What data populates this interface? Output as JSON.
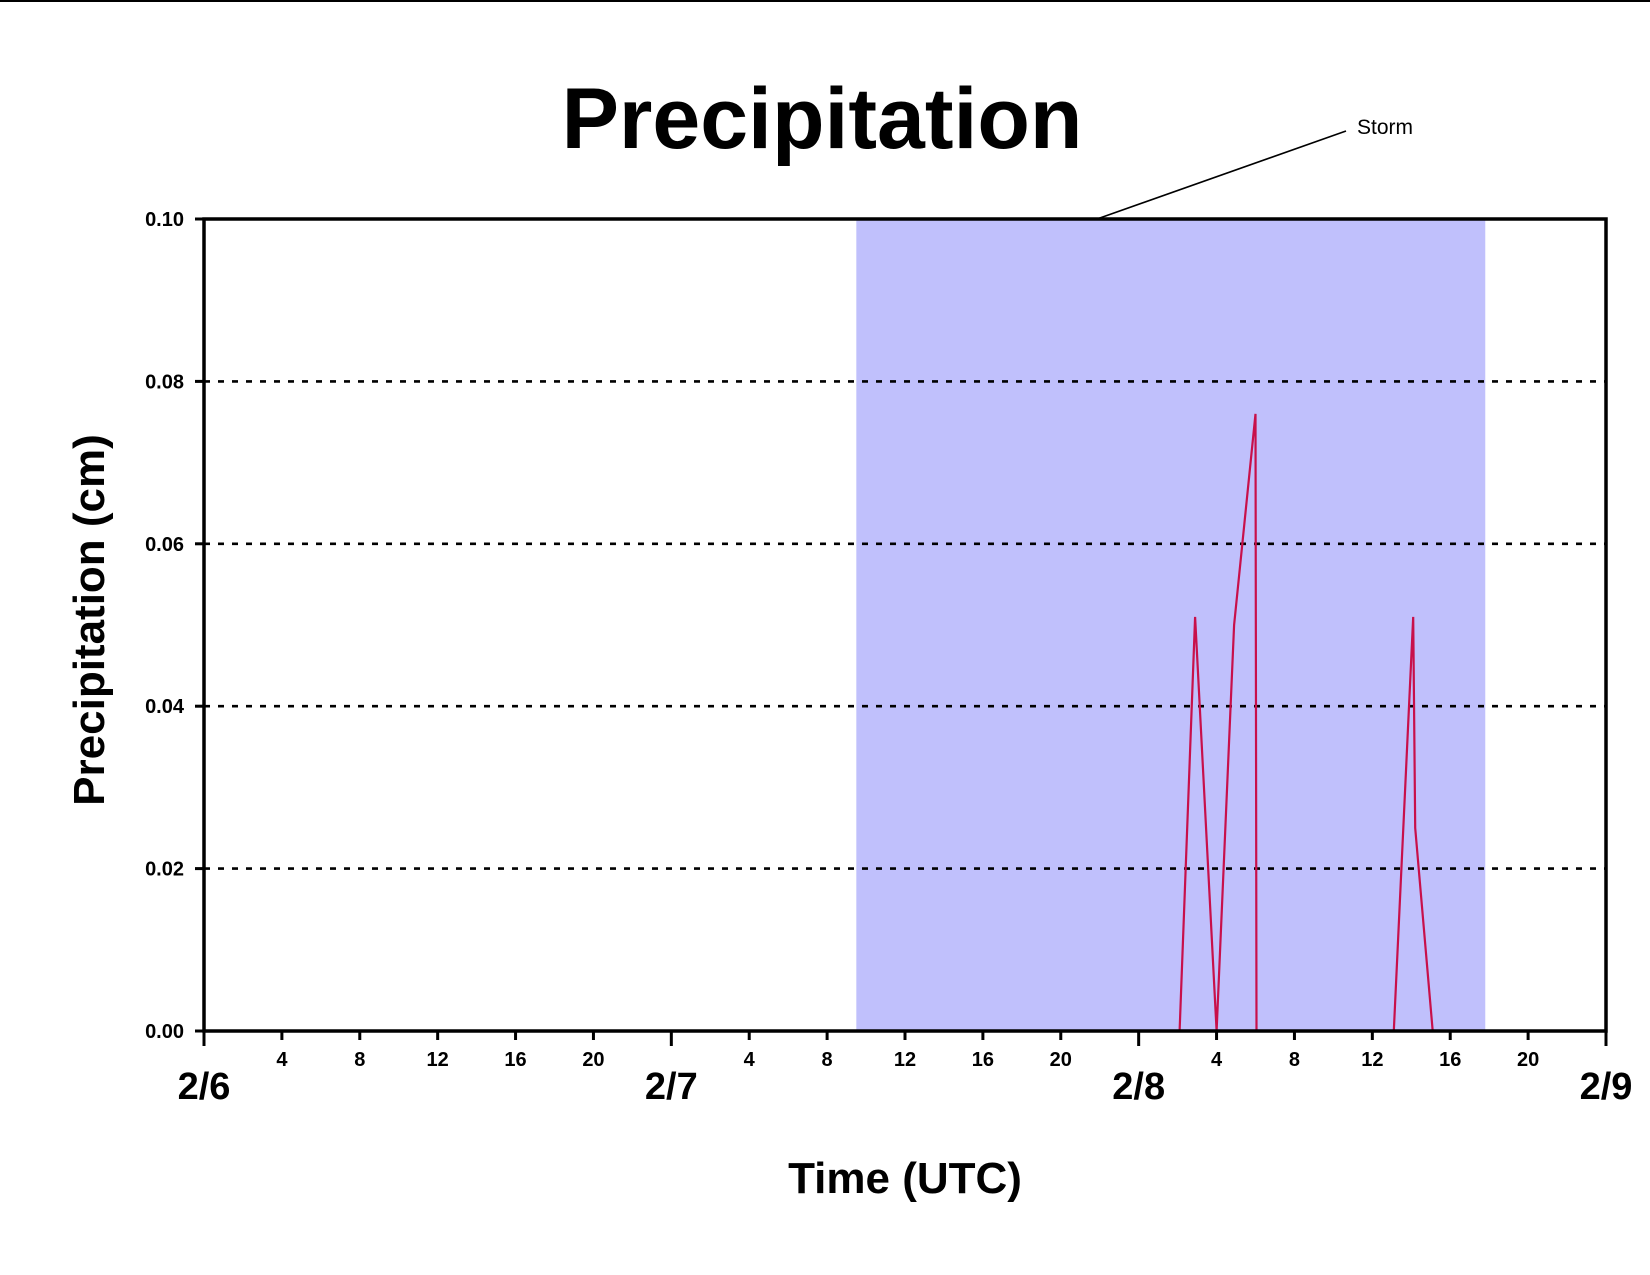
{
  "chart_data": {
    "type": "line",
    "title": "Precipitation",
    "xlabel": "Time (UTC)",
    "ylabel": "Precipitation (cm)",
    "ylim": [
      0,
      0.1
    ],
    "xlim_hours": [
      0,
      72
    ],
    "y_ticks": [
      "0.00",
      "0.02",
      "0.04",
      "0.06",
      "0.08",
      "0.10"
    ],
    "y_gridlines": [
      0.02,
      0.04,
      0.06,
      0.08
    ],
    "grid_style": "dotted horizontal",
    "x_major_ticks": [
      {
        "hour": 0,
        "label": "2/6"
      },
      {
        "hour": 24,
        "label": "2/7"
      },
      {
        "hour": 48,
        "label": "2/8"
      },
      {
        "hour": 72,
        "label": "2/9"
      }
    ],
    "x_minor_ticks": [
      {
        "hour": 4,
        "label": "4"
      },
      {
        "hour": 8,
        "label": "8"
      },
      {
        "hour": 12,
        "label": "12"
      },
      {
        "hour": 16,
        "label": "16"
      },
      {
        "hour": 20,
        "label": "20"
      },
      {
        "hour": 28,
        "label": "4"
      },
      {
        "hour": 32,
        "label": "8"
      },
      {
        "hour": 36,
        "label": "12"
      },
      {
        "hour": 40,
        "label": "16"
      },
      {
        "hour": 44,
        "label": "20"
      },
      {
        "hour": 52,
        "label": "4"
      },
      {
        "hour": 56,
        "label": "8"
      },
      {
        "hour": 60,
        "label": "12"
      },
      {
        "hour": 64,
        "label": "16"
      },
      {
        "hour": 68,
        "label": "20"
      }
    ],
    "shaded_region": {
      "label": "Storm",
      "x_start_hour": 33.5,
      "x_end_hour": 65.8,
      "color": "#c0c0fc"
    },
    "series": [
      {
        "color": "#c8104a",
        "points": [
          [
            0,
            0
          ],
          [
            50.1,
            0
          ],
          [
            50.9,
            0.051
          ],
          [
            52.0,
            0.0
          ],
          [
            52.9,
            0.05
          ],
          [
            54.0,
            0.076
          ],
          [
            54.05,
            0.0
          ],
          [
            61.1,
            0
          ],
          [
            62.1,
            0.051
          ],
          [
            62.2,
            0.025
          ],
          [
            63.1,
            0
          ],
          [
            72,
            0
          ]
        ]
      }
    ],
    "colors": {
      "plot_line": "#c8104a",
      "storm_shade": "#c0c0fc",
      "axis": "#000000"
    }
  }
}
